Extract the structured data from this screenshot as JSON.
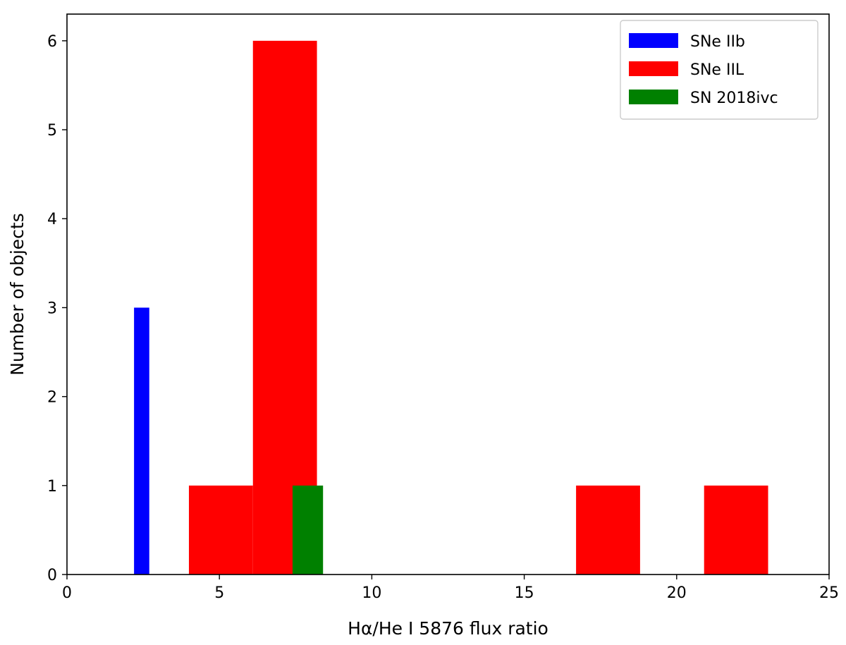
{
  "chart_data": {
    "type": "bar",
    "xlabel": "Hα/He I 5876 flux ratio",
    "ylabel": "Number of objects",
    "xlim": [
      0,
      25
    ],
    "ylim": [
      0,
      6.3
    ],
    "xticks": [
      0,
      5,
      10,
      15,
      20,
      25
    ],
    "yticks": [
      0,
      1,
      2,
      3,
      4,
      5,
      6
    ],
    "grid": false,
    "legend_position": "top-right",
    "series": [
      {
        "name": "SNe IIb",
        "color": "#0000ff",
        "bins": [
          {
            "x0": 2.2,
            "x1": 2.7,
            "count": 3
          }
        ]
      },
      {
        "name": "SNe IIL",
        "color": "#ff0000",
        "bins": [
          {
            "x0": 4.0,
            "x1": 6.1,
            "count": 1
          },
          {
            "x0": 6.1,
            "x1": 8.2,
            "count": 6
          },
          {
            "x0": 8.2,
            "x1": 10.3,
            "count": 0
          },
          {
            "x0": 10.3,
            "x1": 12.4,
            "count": 0
          },
          {
            "x0": 12.4,
            "x1": 14.5,
            "count": 0
          },
          {
            "x0": 14.5,
            "x1": 16.6,
            "count": 0
          },
          {
            "x0": 16.7,
            "x1": 18.8,
            "count": 1
          },
          {
            "x0": 18.8,
            "x1": 20.9,
            "count": 0
          },
          {
            "x0": 20.9,
            "x1": 23.0,
            "count": 1
          }
        ]
      },
      {
        "name": "SN 2018ivc",
        "color": "#008000",
        "bins": [
          {
            "x0": 7.4,
            "x1": 8.4,
            "count": 1
          }
        ]
      }
    ]
  }
}
